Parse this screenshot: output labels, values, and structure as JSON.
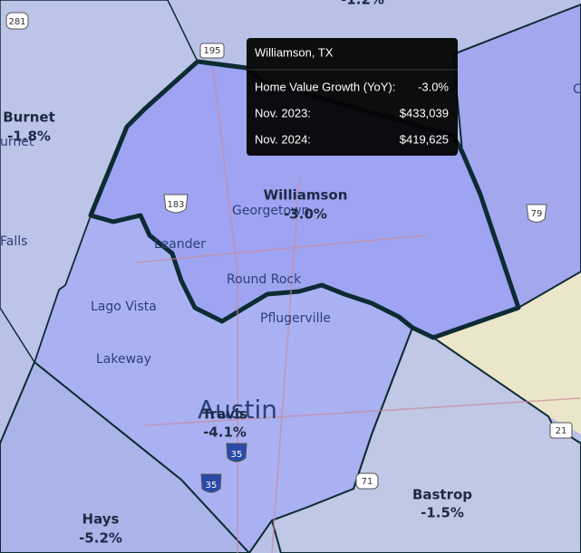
{
  "map": {
    "regions": [
      {
        "name": "Williamson",
        "value": "-3.0%"
      },
      {
        "name": "Travis",
        "value": "-4.1%"
      },
      {
        "name": "Burnet",
        "value": "-1.8%"
      },
      {
        "name": "Hays",
        "value": "-5.2%"
      },
      {
        "name": "Bastrop",
        "value": "-1.5%"
      },
      {
        "value": "-1.2%"
      }
    ],
    "places": [
      "Georgetown",
      "Leander",
      "Round Rock",
      "Pflugerville",
      "Lago Vista",
      "Lakeway",
      "Austin",
      "urnet",
      "Falls",
      "C"
    ],
    "shields": [
      "281",
      "195",
      "183",
      "79",
      "35",
      "35",
      "71",
      "21"
    ]
  },
  "tooltip": {
    "title": "Williamson, TX",
    "rows": [
      {
        "label": "Home Value Growth (YoY):",
        "value": "-3.0%"
      },
      {
        "label": "Nov. 2023:",
        "value": "$433,039"
      },
      {
        "label": "Nov. 2024:",
        "value": "$419,625"
      }
    ]
  }
}
